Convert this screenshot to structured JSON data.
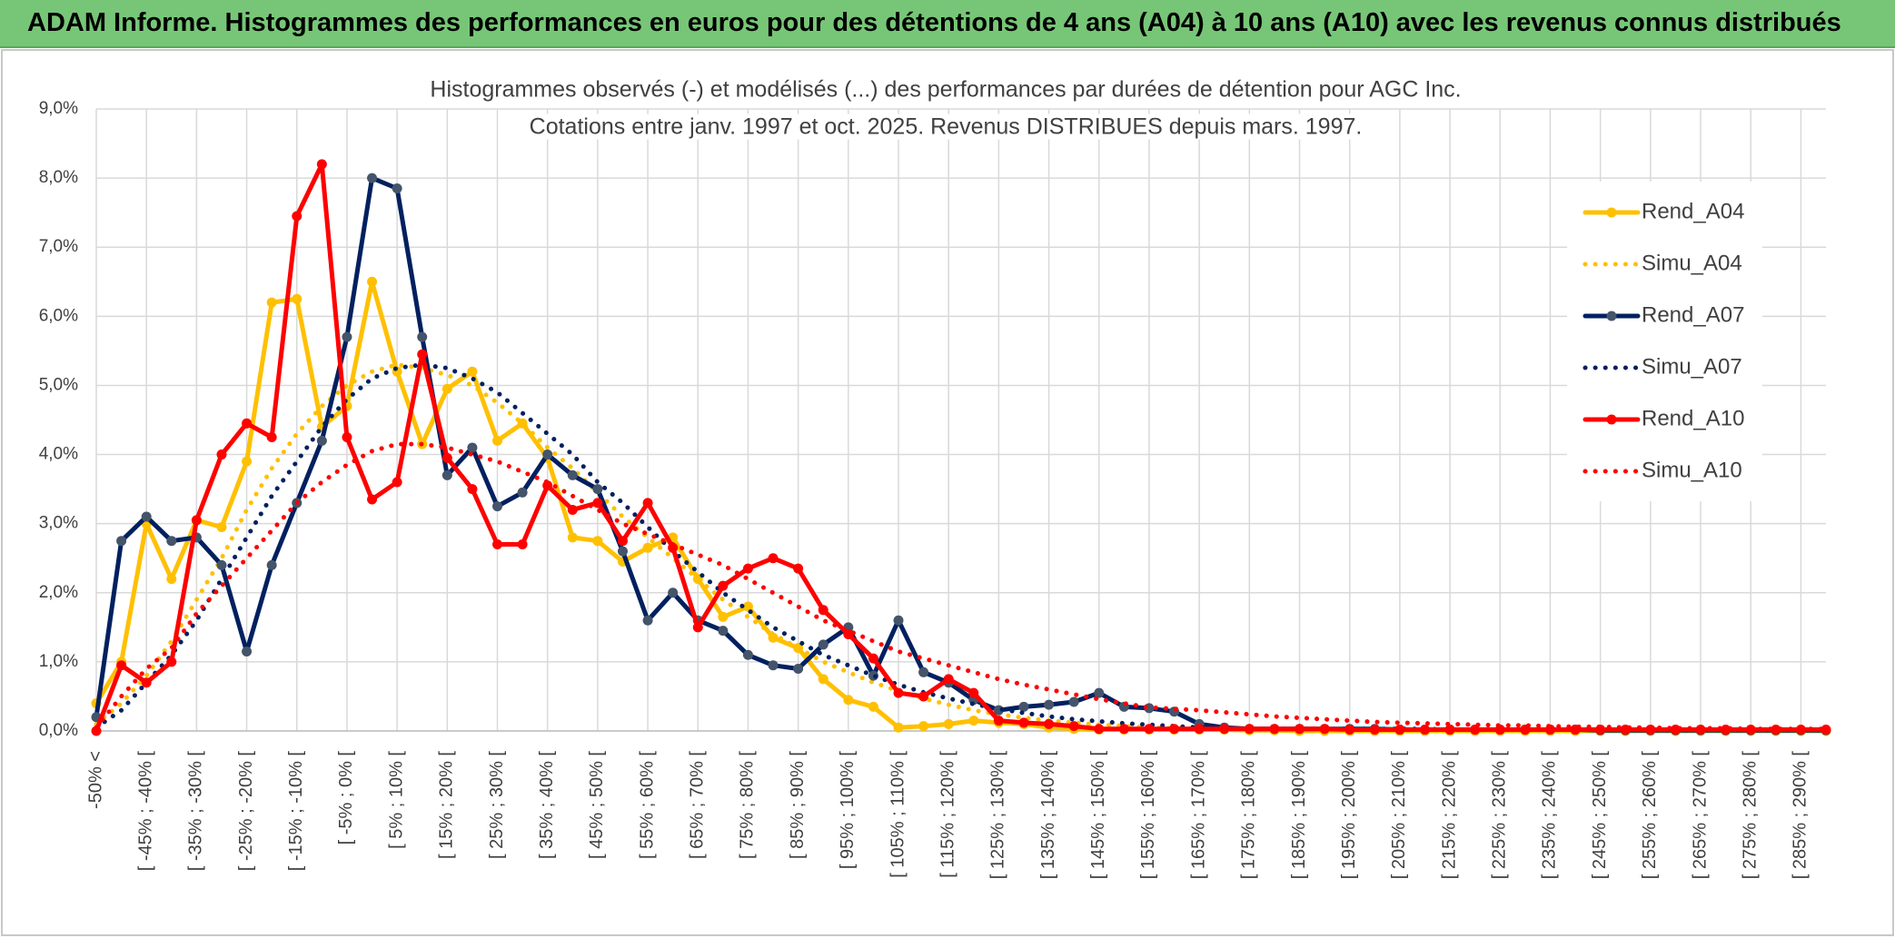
{
  "header": {
    "title": "ADAM Informe. Histogrammes des performances en euros pour des détentions de 4 ans (A04) à 10 ans (A10) avec les revenus connus distribués"
  },
  "chart_data": {
    "type": "line",
    "title": "Histogrammes observés (-) et modélisés (...) des performances par durées de détention pour AGC Inc.",
    "subtitle": "Cotations entre janv. 1997 et oct. 2025. Revenus DISTRIBUES depuis mars. 1997.",
    "categories": [
      "-50% <",
      null,
      "[ -45% ; -40% [",
      null,
      "[ -35% ; -30% [",
      null,
      "[ -25% ; -20% [",
      null,
      "[ -15% ; -10% [",
      null,
      "[ -5% ; 0% [",
      null,
      "[ 5% ; 10% [",
      null,
      "[ 15% ; 20% [",
      null,
      "[ 25% ; 30% [",
      null,
      "[ 35% ; 40% [",
      null,
      "[ 45% ; 50% [",
      null,
      "[ 55% ; 60% [",
      null,
      "[ 65% ; 70% [",
      null,
      "[ 75% ; 80% [",
      null,
      "[ 85% ; 90% [",
      null,
      "[ 95% ; 100% [",
      null,
      "[ 105% ; 110% [",
      null,
      "[ 115% ; 120% [",
      null,
      "[ 125% ; 130% [",
      null,
      "[ 135% ; 140% [",
      null,
      "[ 145% ; 150% [",
      null,
      "[ 155% ; 160% [",
      null,
      "[ 165% ; 170% [",
      null,
      "[ 175% ; 180% [",
      null,
      "[ 185% ; 190% [",
      null,
      "[ 195% ; 200% [",
      null,
      "[ 205% ; 210% [",
      null,
      "[ 215% ; 220% [",
      null,
      "[ 225% ; 230% [",
      null,
      "[ 235% ; 240% [",
      null,
      "[ 245% ; 250% [",
      null,
      "[ 255% ; 260% [",
      null,
      "[ 265% ; 270% [",
      null,
      "[ 275% ; 280% [",
      null,
      "[ 285% ; 290% [",
      null
    ],
    "series": [
      {
        "name": "Rend_A04",
        "color": "#ffc000",
        "line_style": "solid",
        "marker": true,
        "values": [
          0.4,
          1.0,
          3.0,
          2.2,
          3.05,
          2.95,
          3.9,
          6.2,
          6.25,
          4.4,
          4.7,
          6.5,
          5.2,
          4.15,
          4.95,
          5.2,
          4.2,
          4.45,
          3.95,
          2.8,
          2.75,
          2.45,
          2.65,
          2.8,
          2.2,
          1.65,
          1.8,
          1.35,
          1.2,
          0.75,
          0.45,
          0.35,
          0.05,
          0.07,
          0.1,
          0.15,
          0.12,
          0.1,
          0.05,
          0.03,
          0.02,
          0.02,
          0.02,
          0.02,
          0.02,
          0.02,
          0.01,
          0.01,
          0,
          0,
          0,
          0,
          0,
          0,
          0,
          0,
          0,
          0,
          0,
          0,
          0,
          0,
          0,
          0,
          0,
          0,
          0,
          0,
          0,
          0
        ]
      },
      {
        "name": "Simu_A04",
        "color": "#ffc000",
        "line_style": "dotted",
        "marker": false,
        "values": [
          0.1,
          0.4,
          0.8,
          1.3,
          1.9,
          2.5,
          3.2,
          3.8,
          4.3,
          4.7,
          5.0,
          5.2,
          5.3,
          5.25,
          5.15,
          5.0,
          4.75,
          4.45,
          4.1,
          3.8,
          3.45,
          3.1,
          2.8,
          2.5,
          2.2,
          1.9,
          1.65,
          1.4,
          1.2,
          1.0,
          0.85,
          0.7,
          0.58,
          0.47,
          0.38,
          0.3,
          0.24,
          0.19,
          0.15,
          0.12,
          0.09,
          0.07,
          0.05,
          0.04,
          0.03,
          0.02,
          0.02,
          0.02,
          0.02,
          0.02,
          0.02,
          0.02,
          0.02,
          0.02,
          0.02,
          0.01,
          0.01,
          0.01,
          0.01,
          0.01,
          0.01,
          0.01,
          0.01,
          0.01,
          0.01,
          0.01,
          0.01,
          0.01,
          0.01,
          0.01
        ]
      },
      {
        "name": "Rend_A07",
        "color": "#002060",
        "line_style": "solid",
        "marker": true,
        "values": [
          0.2,
          2.75,
          3.1,
          2.75,
          2.8,
          2.4,
          1.15,
          2.4,
          3.3,
          4.2,
          5.7,
          8.0,
          7.85,
          5.7,
          3.7,
          4.1,
          3.25,
          3.45,
          4.0,
          3.7,
          3.5,
          2.6,
          1.6,
          2.0,
          1.6,
          1.45,
          1.1,
          0.95,
          0.9,
          1.25,
          1.5,
          0.8,
          1.6,
          0.85,
          0.7,
          0.45,
          0.3,
          0.35,
          0.38,
          0.42,
          0.55,
          0.35,
          0.33,
          0.28,
          0.1,
          0.05,
          0.03,
          0.03,
          0.03,
          0.03,
          0.03,
          0.03,
          0.02,
          0.02,
          0.02,
          0.02,
          0.02,
          0.02,
          0.02,
          0.02,
          0.01,
          0.01,
          0.01,
          0.01,
          0.01,
          0.01,
          0.01,
          0.01,
          0.01,
          0.01
        ]
      },
      {
        "name": "Simu_A07",
        "color": "#002060",
        "line_style": "dotted",
        "marker": false,
        "values": [
          0.05,
          0.3,
          0.7,
          1.1,
          1.6,
          2.2,
          2.8,
          3.4,
          3.9,
          4.4,
          4.8,
          5.1,
          5.25,
          5.3,
          5.25,
          5.1,
          4.9,
          4.6,
          4.3,
          4.0,
          3.6,
          3.3,
          2.95,
          2.6,
          2.3,
          2.0,
          1.75,
          1.5,
          1.3,
          1.1,
          0.95,
          0.8,
          0.67,
          0.56,
          0.47,
          0.39,
          0.32,
          0.26,
          0.21,
          0.17,
          0.14,
          0.11,
          0.09,
          0.07,
          0.05,
          0.04,
          0.03,
          0.03,
          0.03,
          0.03,
          0.03,
          0.03,
          0.03,
          0.03,
          0.02,
          0.02,
          0.02,
          0.02,
          0.02,
          0.02,
          0.02,
          0.02,
          0.01,
          0.01,
          0.01,
          0.01,
          0.01,
          0.01,
          0.01,
          0.01
        ]
      },
      {
        "name": "Rend_A10",
        "color": "#ff0000",
        "line_style": "solid",
        "marker": true,
        "values": [
          0,
          0.95,
          0.7,
          1.0,
          3.05,
          4.0,
          4.45,
          4.25,
          7.45,
          8.2,
          4.25,
          3.35,
          3.6,
          5.45,
          3.95,
          3.5,
          2.7,
          2.7,
          3.55,
          3.2,
          3.3,
          2.75,
          3.3,
          2.65,
          1.5,
          2.1,
          2.35,
          2.5,
          2.35,
          1.75,
          1.4,
          1.05,
          0.55,
          0.5,
          0.75,
          0.55,
          0.15,
          0.12,
          0.1,
          0.07,
          0.03,
          0.03,
          0.03,
          0.03,
          0.03,
          0.03,
          0.03,
          0.03,
          0.03,
          0.03,
          0.02,
          0.02,
          0.02,
          0.02,
          0.02,
          0.02,
          0.02,
          0.02,
          0.02,
          0.02,
          0.02,
          0.02,
          0.02,
          0.02,
          0.02,
          0.02,
          0.02,
          0.02,
          0.02,
          0.02
        ]
      },
      {
        "name": "Simu_A10",
        "color": "#ff0000",
        "line_style": "dotted",
        "marker": false,
        "values": [
          0.05,
          0.5,
          0.9,
          1.2,
          1.7,
          2.1,
          2.5,
          2.9,
          3.3,
          3.6,
          3.85,
          4.05,
          4.15,
          4.15,
          4.1,
          4.0,
          3.9,
          3.75,
          3.6,
          3.4,
          3.2,
          3.0,
          2.85,
          2.7,
          2.55,
          2.4,
          2.2,
          2.0,
          1.8,
          1.6,
          1.45,
          1.3,
          1.15,
          1.05,
          0.95,
          0.85,
          0.75,
          0.67,
          0.6,
          0.53,
          0.46,
          0.4,
          0.34,
          0.32,
          0.3,
          0.27,
          0.24,
          0.21,
          0.19,
          0.17,
          0.15,
          0.13,
          0.12,
          0.11,
          0.1,
          0.09,
          0.08,
          0.08,
          0.07,
          0.06,
          0.06,
          0.05,
          0.05,
          0.04,
          0.04,
          0.04,
          0.03,
          0.03,
          0.03,
          0.03
        ]
      }
    ],
    "ylim": [
      0,
      9
    ],
    "yticks": [
      {
        "value": 0,
        "label": "0,0%"
      },
      {
        "value": 1,
        "label": "1,0%"
      },
      {
        "value": 2,
        "label": "2,0%"
      },
      {
        "value": 3,
        "label": "3,0%"
      },
      {
        "value": 4,
        "label": "4,0%"
      },
      {
        "value": 5,
        "label": "5,0%"
      },
      {
        "value": 6,
        "label": "6,0%"
      },
      {
        "value": 7,
        "label": "7,0%"
      },
      {
        "value": 8,
        "label": "8,0%"
      },
      {
        "value": 9,
        "label": "9,0%"
      }
    ],
    "grid": true,
    "legend": "upper right"
  }
}
